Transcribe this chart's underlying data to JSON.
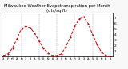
{
  "title": "Milwaukee Weather Evapotranspiration per Month (qts/sq ft)",
  "months": [
    "J",
    "F",
    "M",
    "A",
    "M",
    "J",
    "J",
    "A",
    "S",
    "O",
    "N",
    "D",
    "J",
    "F",
    "M",
    "A",
    "M",
    "J",
    "J",
    "A",
    "S",
    "O",
    "N",
    "D",
    "J"
  ],
  "values": [
    0.2,
    0.5,
    1.5,
    3.2,
    5.0,
    5.5,
    5.2,
    4.2,
    2.8,
    1.5,
    0.6,
    0.2,
    0.2,
    0.5,
    1.8,
    3.5,
    5.5,
    6.8,
    7.2,
    6.0,
    4.0,
    2.2,
    0.8,
    0.2,
    0.1
  ],
  "line_color": "#cc0000",
  "marker": "o",
  "linestyle": "--",
  "grid_color": "#999999",
  "bg_color": "#f8f8f8",
  "plot_bg": "#ffffff",
  "ylim": [
    0,
    8
  ],
  "yticks": [
    1,
    2,
    3,
    4,
    5,
    6,
    7
  ],
  "ylabel_fontsize": 3.2,
  "title_fontsize": 3.8,
  "xlabel_fontsize": 3.0,
  "marker_size": 1.0,
  "linewidth": 0.7,
  "grid_vlines": [
    4,
    8,
    12,
    16,
    20,
    24
  ]
}
